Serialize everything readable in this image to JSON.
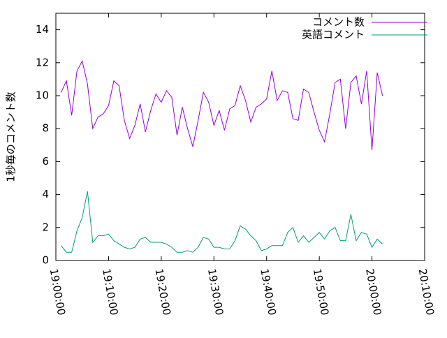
{
  "chart_data": {
    "type": "line",
    "ylabel": "1秒毎のコメント数",
    "x": [
      "19:01:00",
      "19:02:00",
      "19:03:00",
      "19:04:00",
      "19:05:00",
      "19:06:00",
      "19:07:00",
      "19:08:00",
      "19:09:00",
      "19:10:00",
      "19:11:00",
      "19:12:00",
      "19:13:00",
      "19:14:00",
      "19:15:00",
      "19:16:00",
      "19:17:00",
      "19:18:00",
      "19:19:00",
      "19:20:00",
      "19:21:00",
      "19:22:00",
      "19:23:00",
      "19:24:00",
      "19:25:00",
      "19:26:00",
      "19:27:00",
      "19:28:00",
      "19:29:00",
      "19:30:00",
      "19:31:00",
      "19:32:00",
      "19:33:00",
      "19:34:00",
      "19:35:00",
      "19:36:00",
      "19:37:00",
      "19:38:00",
      "19:39:00",
      "19:40:00",
      "19:41:00",
      "19:42:00",
      "19:43:00",
      "19:44:00",
      "19:45:00",
      "19:46:00",
      "19:47:00",
      "19:48:00",
      "19:49:00",
      "19:50:00",
      "19:51:00",
      "19:52:00",
      "19:53:00",
      "19:54:00",
      "19:55:00",
      "19:56:00",
      "19:57:00",
      "19:58:00",
      "19:59:00",
      "20:00:00",
      "20:01:00",
      "20:02:00"
    ],
    "series": [
      {
        "name": "コメント数",
        "color": "#9400d3",
        "values": [
          10.2,
          10.9,
          8.8,
          11.5,
          12.1,
          10.7,
          8.0,
          8.7,
          8.9,
          9.4,
          10.9,
          10.6,
          8.5,
          7.4,
          8.2,
          9.5,
          7.8,
          9.1,
          10.1,
          9.6,
          10.3,
          9.9,
          7.6,
          9.3,
          8.0,
          6.9,
          8.5,
          10.2,
          9.6,
          8.2,
          9.1,
          7.9,
          9.2,
          9.4,
          10.6,
          9.7,
          8.4,
          9.3,
          9.5,
          9.8,
          11.5,
          9.7,
          10.3,
          10.2,
          8.6,
          8.5,
          10.4,
          10.2,
          9.0,
          7.9,
          7.2,
          8.9,
          10.8,
          11.0,
          8.0,
          10.8,
          11.2,
          9.5,
          11.5,
          6.7,
          11.4,
          10.0
        ]
      },
      {
        "name": "英語コメント",
        "color": "#009e73",
        "values": [
          0.9,
          0.5,
          0.5,
          1.8,
          2.6,
          4.2,
          1.1,
          1.5,
          1.5,
          1.6,
          1.2,
          1.0,
          0.8,
          0.7,
          0.8,
          1.3,
          1.4,
          1.1,
          1.1,
          1.1,
          1.0,
          0.8,
          0.5,
          0.5,
          0.6,
          0.5,
          0.8,
          1.4,
          1.3,
          0.8,
          0.8,
          0.7,
          0.7,
          1.2,
          2.1,
          1.9,
          1.5,
          1.2,
          0.6,
          0.7,
          0.9,
          0.9,
          0.9,
          1.7,
          2.0,
          1.1,
          1.5,
          1.1,
          1.4,
          1.7,
          1.3,
          1.8,
          2.0,
          1.2,
          1.2,
          2.8,
          1.2,
          1.7,
          1.6,
          0.8,
          1.3,
          1.0
        ]
      }
    ],
    "xlim": [
      "19:00:00",
      "20:10:00"
    ],
    "xticks": [
      "19:00:00",
      "19:10:00",
      "19:20:00",
      "19:30:00",
      "19:40:00",
      "19:50:00",
      "20:00:00",
      "20:10:00"
    ],
    "ylim": [
      0,
      15
    ],
    "yticks": [
      0,
      2,
      4,
      6,
      8,
      10,
      12,
      14
    ],
    "legend": "top-right"
  }
}
